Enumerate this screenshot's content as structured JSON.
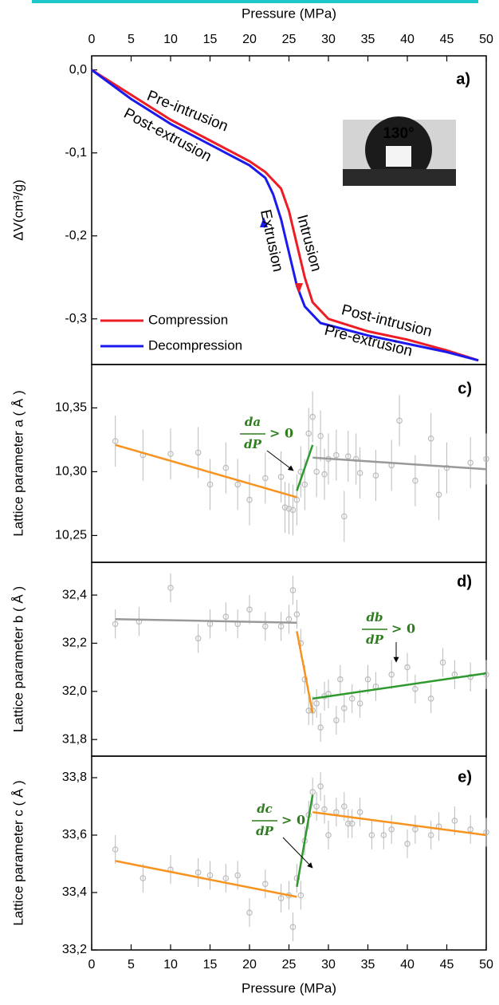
{
  "chart_data": [
    {
      "type": "line",
      "label": "a)",
      "xlabel": "Pressure (MPa)",
      "ylabel": "ΔV(cm³/g)",
      "xlim": [
        0,
        50
      ],
      "xticks": [
        0,
        5,
        10,
        15,
        20,
        25,
        30,
        35,
        40,
        45,
        50
      ],
      "ylim": [
        -0.355,
        0.017
      ],
      "yticks": [
        {
          "value": 0,
          "label": "0,0"
        },
        {
          "value": -0.1,
          "label": "-0,1"
        },
        {
          "value": -0.2,
          "label": "-0,2"
        },
        {
          "value": -0.3,
          "label": "-0,3"
        }
      ],
      "series": [
        {
          "name": "Compression",
          "color": "#ee1c24",
          "x": [
            0,
            5,
            10,
            15,
            20,
            22,
            24,
            25,
            26,
            27,
            28,
            30,
            35,
            40,
            45,
            49
          ],
          "values": [
            0,
            -0.03,
            -0.06,
            -0.085,
            -0.11,
            -0.123,
            -0.143,
            -0.17,
            -0.21,
            -0.25,
            -0.28,
            -0.3,
            -0.315,
            -0.325,
            -0.338,
            -0.35
          ]
        },
        {
          "name": "Decompression",
          "color": "#1a1aee",
          "x": [
            0,
            5,
            10,
            15,
            20,
            22,
            23,
            24,
            25,
            26,
            27,
            29,
            35,
            40,
            45,
            49
          ],
          "values": [
            0,
            -0.035,
            -0.065,
            -0.09,
            -0.115,
            -0.13,
            -0.15,
            -0.18,
            -0.22,
            -0.26,
            -0.285,
            -0.305,
            -0.32,
            -0.33,
            -0.34,
            -0.35
          ]
        }
      ],
      "annotations": [
        {
          "text": "Pre-intrusion",
          "color": "#ee1c24"
        },
        {
          "text": "Post-extrusion",
          "color": "#1a1aee"
        },
        {
          "text": "Intrusion",
          "color": "#ee1c24"
        },
        {
          "text": "Extrusion",
          "color": "#1a1aee"
        },
        {
          "text": "Post-intrusion",
          "color": "#ee1c24"
        },
        {
          "text": "Pre-extrusion",
          "color": "#1a1aee"
        },
        {
          "text": "130°",
          "color": "#ffffff"
        }
      ]
    },
    {
      "type": "scatter",
      "label": "c)",
      "ylabel": "Lattice parameter a ( Å )",
      "xlim": [
        0,
        50
      ],
      "ylim": [
        10.229,
        10.384
      ],
      "yticks": [
        {
          "value": 10.25,
          "label": "10,25"
        },
        {
          "value": 10.3,
          "label": "10,30"
        },
        {
          "value": 10.35,
          "label": "10,35"
        }
      ],
      "x": [
        3,
        6.5,
        10,
        13.5,
        15,
        17,
        18.5,
        20,
        22,
        24,
        24.5,
        25,
        25.5,
        26,
        26.5,
        27,
        27.5,
        28,
        28.5,
        29,
        29.5,
        30,
        31,
        32,
        32.5,
        33.5,
        34,
        36,
        38,
        39,
        41,
        43,
        44,
        45,
        48,
        50
      ],
      "values": [
        10.324,
        10.313,
        10.314,
        10.315,
        10.29,
        10.303,
        10.29,
        10.278,
        10.295,
        10.296,
        10.272,
        10.271,
        10.27,
        10.278,
        10.3,
        10.29,
        10.33,
        10.343,
        10.3,
        10.328,
        10.298,
        10.31,
        10.313,
        10.265,
        10.312,
        10.31,
        10.299,
        10.297,
        10.305,
        10.34,
        10.293,
        10.326,
        10.282,
        10.303,
        10.307,
        10.31
      ],
      "errors": [
        0.02,
        0.02,
        0.02,
        0.02,
        0.02,
        0.02,
        0.02,
        0.02,
        0.02,
        0.02,
        0.02,
        0.02,
        0.02,
        0.02,
        0.02,
        0.02,
        0.02,
        0.02,
        0.02,
        0.02,
        0.02,
        0.02,
        0.02,
        0.02,
        0.02,
        0.02,
        0.02,
        0.02,
        0.02,
        0.02,
        0.02,
        0.02,
        0.02,
        0.02,
        0.02,
        0.02
      ],
      "marker_color": "#bbbbbb",
      "fits": [
        {
          "color": "#f7931e",
          "x": [
            3,
            26
          ],
          "y": [
            10.321,
            10.28
          ]
        },
        {
          "color": "#2e9a2e",
          "x": [
            26,
            28
          ],
          "y": [
            10.285,
            10.321
          ]
        },
        {
          "color": "#999999",
          "x": [
            28,
            50
          ],
          "y": [
            10.311,
            10.302
          ]
        }
      ],
      "fraction": {
        "numerator": "da",
        "denominator": "dP",
        "relation": "> 0"
      }
    },
    {
      "type": "scatter",
      "label": "d)",
      "ylabel": "Lattice parameter b ( Å )",
      "xlim": [
        0,
        50
      ],
      "ylim": [
        31.731,
        32.536
      ],
      "yticks": [
        {
          "value": 31.8,
          "label": "31,8"
        },
        {
          "value": 32,
          "label": "32,0"
        },
        {
          "value": 32.2,
          "label": "32,2"
        },
        {
          "value": 32.4,
          "label": "32,4"
        }
      ],
      "x": [
        3,
        6,
        10,
        13.5,
        15,
        17,
        18.5,
        20,
        22,
        24,
        25,
        25.5,
        26,
        26.5,
        27,
        27.5,
        28,
        28.5,
        29,
        29.5,
        30,
        31,
        31.5,
        32,
        33,
        34,
        35,
        36,
        38,
        40,
        41,
        43,
        44.5,
        46,
        48,
        50
      ],
      "values": [
        32.28,
        32.29,
        32.43,
        32.22,
        32.28,
        32.31,
        32.28,
        32.34,
        32.27,
        32.27,
        32.3,
        32.42,
        32.32,
        32.2,
        32.05,
        31.92,
        31.92,
        31.95,
        31.85,
        31.98,
        31.99,
        31.88,
        32.05,
        31.93,
        31.97,
        31.95,
        32.05,
        32.02,
        32.07,
        32.1,
        32.01,
        31.97,
        32.12,
        32.07,
        32.06,
        32.07
      ],
      "errors": [
        0.06,
        0.06,
        0.06,
        0.06,
        0.06,
        0.06,
        0.06,
        0.06,
        0.06,
        0.06,
        0.06,
        0.06,
        0.06,
        0.06,
        0.06,
        0.06,
        0.06,
        0.06,
        0.06,
        0.06,
        0.06,
        0.06,
        0.06,
        0.06,
        0.06,
        0.06,
        0.06,
        0.06,
        0.06,
        0.06,
        0.06,
        0.06,
        0.06,
        0.06,
        0.06,
        0.06
      ],
      "marker_color": "#bbbbbb",
      "fits": [
        {
          "color": "#999999",
          "x": [
            3,
            26
          ],
          "y": [
            32.3,
            32.285
          ]
        },
        {
          "color": "#f7931e",
          "x": [
            26,
            28
          ],
          "y": [
            32.25,
            31.91
          ]
        },
        {
          "color": "#2e9a2e",
          "x": [
            28,
            50
          ],
          "y": [
            31.97,
            32.075
          ]
        }
      ],
      "fraction": {
        "numerator": "db",
        "denominator": "dP",
        "relation": "> 0"
      }
    },
    {
      "type": "scatter",
      "label": "e)",
      "xlabel": "Pressure (MPa)",
      "ylabel": "Lattice parameter c ( Å )",
      "xlim": [
        0,
        50
      ],
      "xticks": [
        0,
        5,
        10,
        15,
        20,
        25,
        30,
        35,
        40,
        45,
        50
      ],
      "ylim": [
        33.2,
        33.875
      ],
      "yticks": [
        {
          "value": 33.2,
          "label": "33,2"
        },
        {
          "value": 33.4,
          "label": "33,4"
        },
        {
          "value": 33.6,
          "label": "33,6"
        },
        {
          "value": 33.8,
          "label": "33,8"
        }
      ],
      "x": [
        3,
        6.5,
        10,
        13.5,
        15,
        17,
        18.5,
        20,
        22,
        24,
        25,
        25.5,
        26,
        26.5,
        27,
        27.5,
        28,
        28.5,
        29,
        29.5,
        30,
        31,
        32,
        32.5,
        33,
        34,
        35.5,
        37,
        38,
        40,
        41,
        43,
        44,
        46,
        48,
        50
      ],
      "values": [
        33.55,
        33.45,
        33.48,
        33.47,
        33.46,
        33.45,
        33.46,
        33.33,
        33.43,
        33.38,
        33.39,
        33.28,
        33.45,
        33.39,
        33.58,
        33.67,
        33.75,
        33.7,
        33.77,
        33.69,
        33.6,
        33.68,
        33.7,
        33.64,
        33.64,
        33.68,
        33.6,
        33.6,
        33.62,
        33.57,
        33.62,
        33.6,
        33.63,
        33.65,
        33.62,
        33.61
      ],
      "errors": [
        0.05,
        0.05,
        0.05,
        0.05,
        0.05,
        0.05,
        0.05,
        0.05,
        0.05,
        0.05,
        0.05,
        0.05,
        0.05,
        0.05,
        0.05,
        0.05,
        0.05,
        0.05,
        0.05,
        0.05,
        0.05,
        0.05,
        0.05,
        0.05,
        0.05,
        0.05,
        0.05,
        0.05,
        0.05,
        0.05,
        0.05,
        0.05,
        0.05,
        0.05,
        0.05,
        0.05
      ],
      "marker_color": "#bbbbbb",
      "fits": [
        {
          "color": "#f7931e",
          "x": [
            3,
            26
          ],
          "y": [
            33.51,
            33.385
          ]
        },
        {
          "color": "#2e9a2e",
          "x": [
            26,
            28
          ],
          "y": [
            33.42,
            33.74
          ]
        },
        {
          "color": "#f7931e",
          "x": [
            28,
            50
          ],
          "y": [
            33.68,
            33.6
          ]
        }
      ],
      "fraction": {
        "numerator": "dc",
        "denominator": "dP",
        "relation": "> 0"
      }
    }
  ]
}
